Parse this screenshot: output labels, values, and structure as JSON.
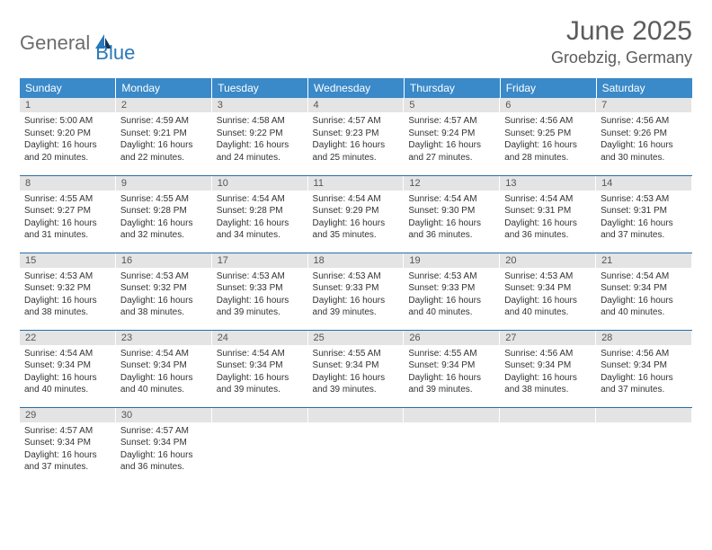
{
  "logo": {
    "part1": "General",
    "part2": "Blue"
  },
  "title": "June 2025",
  "location": "Groebzig, Germany",
  "colors": {
    "header_bg": "#3a89c9",
    "header_text": "#ffffff",
    "daynum_bg": "#e4e4e4",
    "daynum_text": "#555555",
    "row_border": "#2a6ea6",
    "title_text": "#5b5b5b",
    "logo_gray": "#6c6c6c",
    "logo_blue": "#2a78b8"
  },
  "weekdays": [
    "Sunday",
    "Monday",
    "Tuesday",
    "Wednesday",
    "Thursday",
    "Friday",
    "Saturday"
  ],
  "days": [
    {
      "n": "1",
      "sr": "5:00 AM",
      "ss": "9:20 PM",
      "dl": "16 hours and 20 minutes."
    },
    {
      "n": "2",
      "sr": "4:59 AM",
      "ss": "9:21 PM",
      "dl": "16 hours and 22 minutes."
    },
    {
      "n": "3",
      "sr": "4:58 AM",
      "ss": "9:22 PM",
      "dl": "16 hours and 24 minutes."
    },
    {
      "n": "4",
      "sr": "4:57 AM",
      "ss": "9:23 PM",
      "dl": "16 hours and 25 minutes."
    },
    {
      "n": "5",
      "sr": "4:57 AM",
      "ss": "9:24 PM",
      "dl": "16 hours and 27 minutes."
    },
    {
      "n": "6",
      "sr": "4:56 AM",
      "ss": "9:25 PM",
      "dl": "16 hours and 28 minutes."
    },
    {
      "n": "7",
      "sr": "4:56 AM",
      "ss": "9:26 PM",
      "dl": "16 hours and 30 minutes."
    },
    {
      "n": "8",
      "sr": "4:55 AM",
      "ss": "9:27 PM",
      "dl": "16 hours and 31 minutes."
    },
    {
      "n": "9",
      "sr": "4:55 AM",
      "ss": "9:28 PM",
      "dl": "16 hours and 32 minutes."
    },
    {
      "n": "10",
      "sr": "4:54 AM",
      "ss": "9:28 PM",
      "dl": "16 hours and 34 minutes."
    },
    {
      "n": "11",
      "sr": "4:54 AM",
      "ss": "9:29 PM",
      "dl": "16 hours and 35 minutes."
    },
    {
      "n": "12",
      "sr": "4:54 AM",
      "ss": "9:30 PM",
      "dl": "16 hours and 36 minutes."
    },
    {
      "n": "13",
      "sr": "4:54 AM",
      "ss": "9:31 PM",
      "dl": "16 hours and 36 minutes."
    },
    {
      "n": "14",
      "sr": "4:53 AM",
      "ss": "9:31 PM",
      "dl": "16 hours and 37 minutes."
    },
    {
      "n": "15",
      "sr": "4:53 AM",
      "ss": "9:32 PM",
      "dl": "16 hours and 38 minutes."
    },
    {
      "n": "16",
      "sr": "4:53 AM",
      "ss": "9:32 PM",
      "dl": "16 hours and 38 minutes."
    },
    {
      "n": "17",
      "sr": "4:53 AM",
      "ss": "9:33 PM",
      "dl": "16 hours and 39 minutes."
    },
    {
      "n": "18",
      "sr": "4:53 AM",
      "ss": "9:33 PM",
      "dl": "16 hours and 39 minutes."
    },
    {
      "n": "19",
      "sr": "4:53 AM",
      "ss": "9:33 PM",
      "dl": "16 hours and 40 minutes."
    },
    {
      "n": "20",
      "sr": "4:53 AM",
      "ss": "9:34 PM",
      "dl": "16 hours and 40 minutes."
    },
    {
      "n": "21",
      "sr": "4:54 AM",
      "ss": "9:34 PM",
      "dl": "16 hours and 40 minutes."
    },
    {
      "n": "22",
      "sr": "4:54 AM",
      "ss": "9:34 PM",
      "dl": "16 hours and 40 minutes."
    },
    {
      "n": "23",
      "sr": "4:54 AM",
      "ss": "9:34 PM",
      "dl": "16 hours and 40 minutes."
    },
    {
      "n": "24",
      "sr": "4:54 AM",
      "ss": "9:34 PM",
      "dl": "16 hours and 39 minutes."
    },
    {
      "n": "25",
      "sr": "4:55 AM",
      "ss": "9:34 PM",
      "dl": "16 hours and 39 minutes."
    },
    {
      "n": "26",
      "sr": "4:55 AM",
      "ss": "9:34 PM",
      "dl": "16 hours and 39 minutes."
    },
    {
      "n": "27",
      "sr": "4:56 AM",
      "ss": "9:34 PM",
      "dl": "16 hours and 38 minutes."
    },
    {
      "n": "28",
      "sr": "4:56 AM",
      "ss": "9:34 PM",
      "dl": "16 hours and 37 minutes."
    },
    {
      "n": "29",
      "sr": "4:57 AM",
      "ss": "9:34 PM",
      "dl": "16 hours and 37 minutes."
    },
    {
      "n": "30",
      "sr": "4:57 AM",
      "ss": "9:34 PM",
      "dl": "16 hours and 36 minutes."
    }
  ],
  "labels": {
    "sunrise": "Sunrise:",
    "sunset": "Sunset:",
    "daylight": "Daylight:"
  },
  "layout": {
    "columns": 7,
    "start_weekday_index": 0,
    "total_cells": 35
  }
}
